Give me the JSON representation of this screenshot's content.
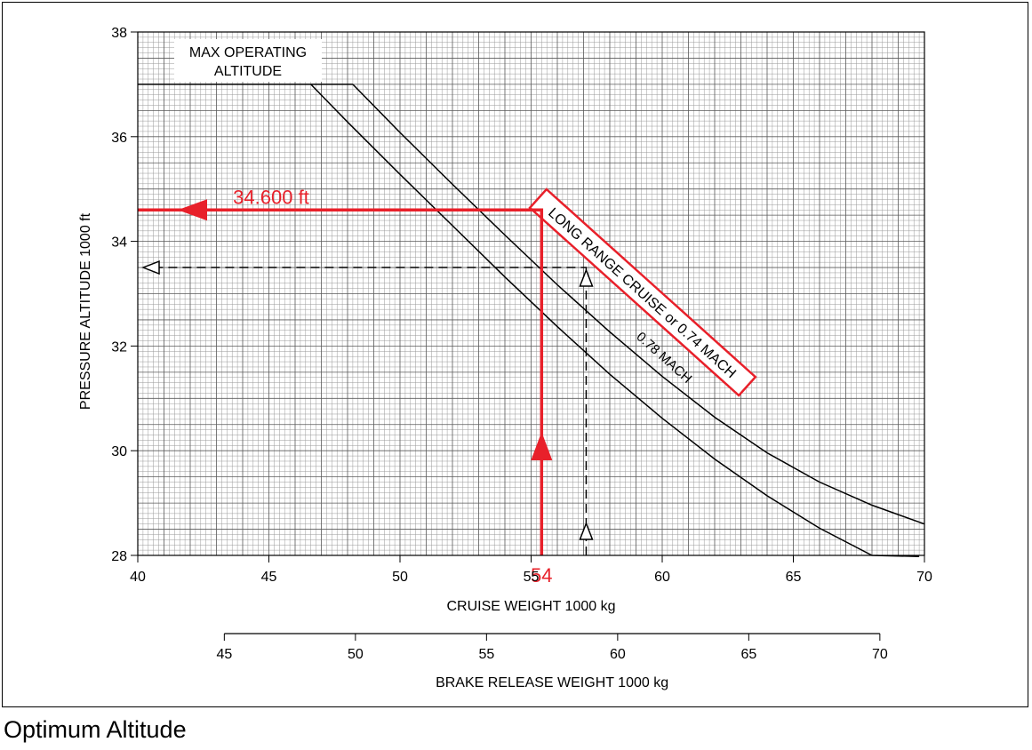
{
  "caption": "Optimum Altitude",
  "chart_data": {
    "type": "line",
    "title": "",
    "xlabel": "CRUISE WEIGHT   1000 kg",
    "ylabel": "PRESSURE ALTITUDE   1000 ft",
    "x2label": "BRAKE RELEASE WEIGHT   1000 kg",
    "xlim": [
      40,
      70
    ],
    "ylim": [
      28,
      38
    ],
    "x_ticks": [
      40,
      45,
      50,
      55,
      60,
      65,
      70
    ],
    "y_ticks": [
      28,
      30,
      32,
      34,
      36,
      38
    ],
    "x2_ticks": [
      45,
      50,
      55,
      60,
      65,
      70
    ],
    "x2_offset": 1.7,
    "grid": true,
    "max_altitude": {
      "label_line1": "MAX OPERATING",
      "label_line2": "ALTITUDE",
      "value": 37
    },
    "series": [
      {
        "name": "LONG RANGE CRUISE  or  0.74 MACH",
        "x": [
          48.2,
          50,
          52,
          54,
          56,
          58,
          60,
          62,
          64,
          66,
          68,
          70
        ],
        "y": [
          37.0,
          36.08,
          35.09,
          34.12,
          33.17,
          32.27,
          31.42,
          30.64,
          29.96,
          29.4,
          28.96,
          28.6
        ]
      },
      {
        "name": "0.78 MACH",
        "x": [
          46.6,
          48,
          50,
          52,
          54,
          56,
          58,
          60,
          62,
          64,
          66,
          68,
          69.8
        ],
        "y": [
          37.0,
          36.28,
          35.28,
          34.3,
          33.32,
          32.37,
          31.46,
          30.62,
          29.84,
          29.14,
          28.52,
          28.0,
          27.98
        ]
      }
    ],
    "annotations": {
      "red_input_x": 54,
      "red_input_label": "54",
      "red_curve_x": 55.4,
      "red_output_y": 34.6,
      "red_output_label": "34.600 ft",
      "dashed_x": 57.1,
      "dashed_y": 33.5
    }
  }
}
